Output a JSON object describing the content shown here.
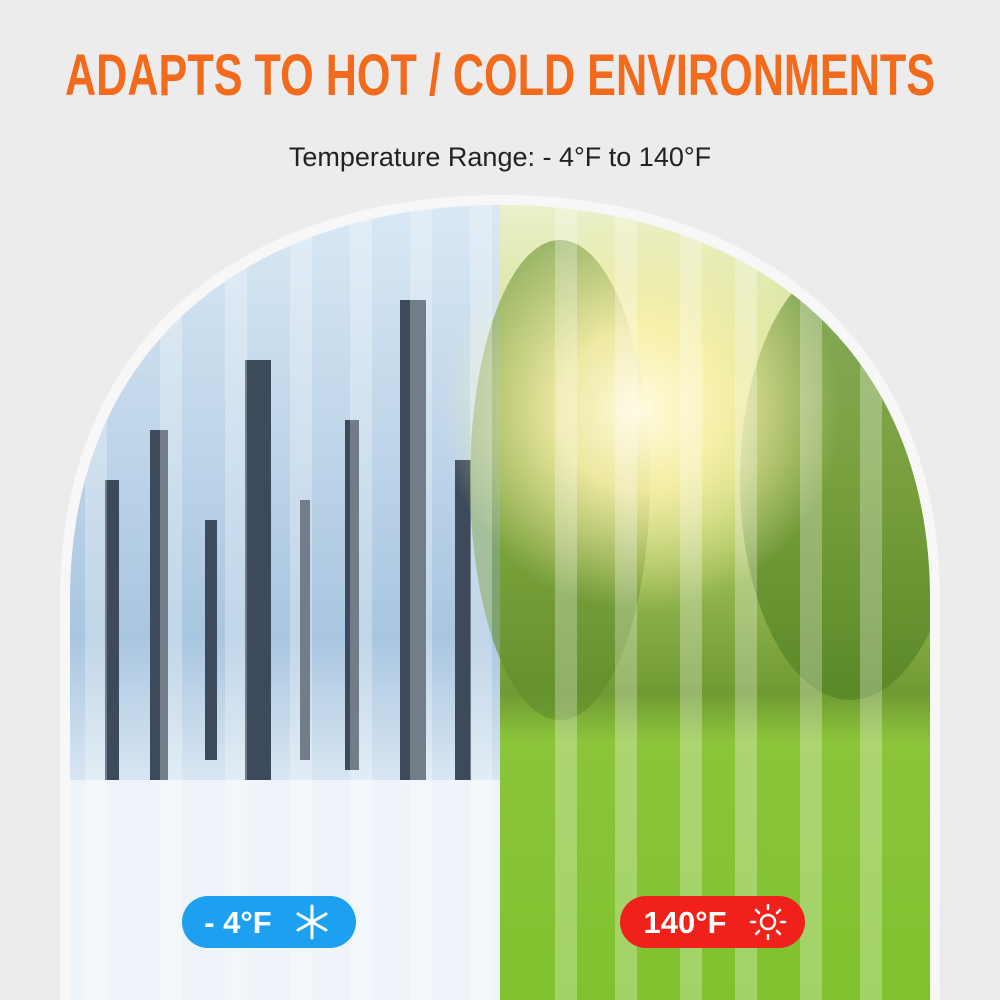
{
  "header": {
    "title": "ADAPTS TO HOT / COLD ENVIRONMENTS",
    "subtitle": "Temperature Range: - 4°F to 140°F"
  },
  "badges": [
    {
      "label": "- 4°F"
    },
    {
      "label": "140°F"
    }
  ]
}
